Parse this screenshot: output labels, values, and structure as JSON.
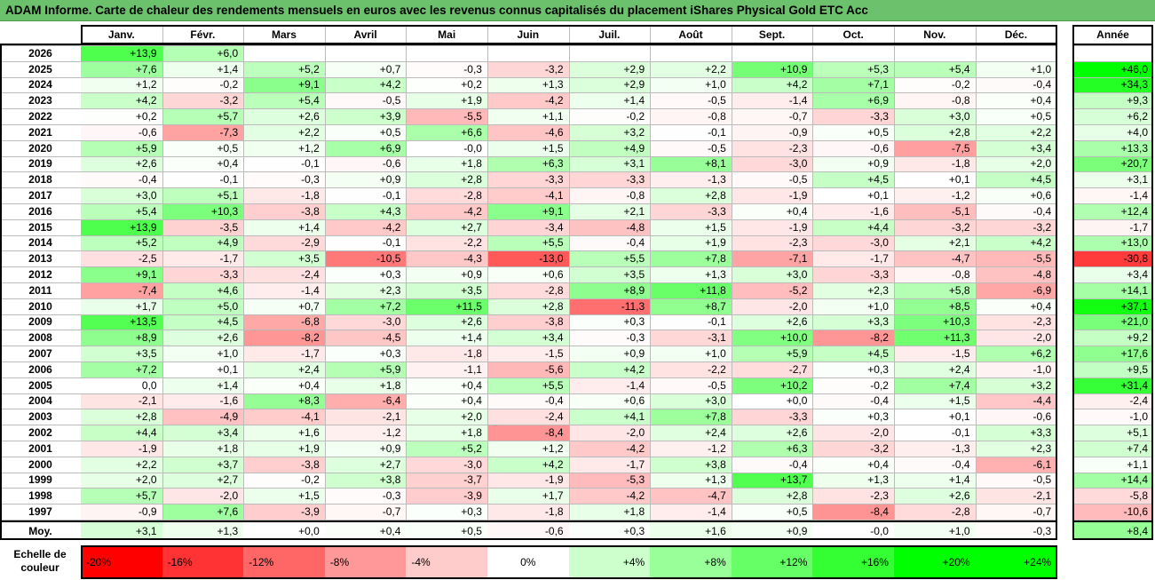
{
  "title": "ADAM Informe. Carte de chaleur des rendements mensuels en euros avec les revenus connus capitalisés du placement iShares Physical Gold ETC Acc",
  "year_header": "Année",
  "avg_label": "Moy.",
  "scale_label": "Echelle de couleur",
  "chart_data": {
    "type": "heatmap",
    "title": "ADAM Informe. Carte de chaleur des rendements mensuels en euros avec les revenus connus capitalisés du placement iShares Physical Gold ETC Acc",
    "months": [
      "Janv.",
      "Févr.",
      "Mars",
      "Avril",
      "Mai",
      "Juin",
      "Juil.",
      "Août",
      "Sept.",
      "Oct.",
      "Nov.",
      "Déc."
    ],
    "rows": [
      {
        "year": "2026",
        "values": [
          "+13,9",
          "+6,0",
          "",
          "",
          "",
          "",
          "",
          "",
          "",
          "",
          "",
          ""
        ],
        "annual": ""
      },
      {
        "year": "2025",
        "values": [
          "+7,6",
          "+1,4",
          "+5,2",
          "+0,7",
          "-0,3",
          "-3,2",
          "+2,9",
          "+2,2",
          "+10,9",
          "+5,3",
          "+5,4",
          "+1,0"
        ],
        "annual": "+46,0"
      },
      {
        "year": "2024",
        "values": [
          "+1,2",
          "-0,2",
          "+9,1",
          "+4,2",
          "+0,2",
          "+1,3",
          "+2,9",
          "+1,0",
          "+4,2",
          "+7,1",
          "-0,2",
          "-0,4"
        ],
        "annual": "+34,3"
      },
      {
        "year": "2023",
        "values": [
          "+4,2",
          "-3,2",
          "+5,4",
          "-0,5",
          "+1,9",
          "-4,2",
          "+1,4",
          "-0,5",
          "-1,4",
          "+6,9",
          "-0,8",
          "+0,4"
        ],
        "annual": "+9,3"
      },
      {
        "year": "2022",
        "values": [
          "+0,2",
          "+5,7",
          "+2,6",
          "+3,9",
          "-5,5",
          "+1,1",
          "-0,2",
          "-0,8",
          "-0,7",
          "-3,3",
          "+3,0",
          "+0,5"
        ],
        "annual": "+6,2"
      },
      {
        "year": "2021",
        "values": [
          "-0,6",
          "-7,3",
          "+2,2",
          "+0,5",
          "+6,6",
          "-4,6",
          "+3,2",
          "-0,1",
          "-0,9",
          "+0,5",
          "+2,8",
          "+2,2"
        ],
        "annual": "+4,0"
      },
      {
        "year": "2020",
        "values": [
          "+5,9",
          "+0,5",
          "+1,2",
          "+6,9",
          "-0,0",
          "+1,5",
          "+4,9",
          "-0,5",
          "-2,3",
          "-0,6",
          "-7,5",
          "+3,4"
        ],
        "annual": "+13,3"
      },
      {
        "year": "2019",
        "values": [
          "+2,6",
          "+0,4",
          "-0,1",
          "-0,6",
          "+1,8",
          "+6,3",
          "+3,1",
          "+8,1",
          "-3,0",
          "+0,9",
          "-1,8",
          "+2,0"
        ],
        "annual": "+20,7"
      },
      {
        "year": "2018",
        "values": [
          "-0,4",
          "-0,1",
          "-0,3",
          "+0,9",
          "+2,8",
          "-3,3",
          "-3,3",
          "-1,3",
          "-0,5",
          "+4,5",
          "+0,1",
          "+4,5"
        ],
        "annual": "+3,1"
      },
      {
        "year": "2017",
        "values": [
          "+3,0",
          "+5,1",
          "-1,8",
          "-0,1",
          "-2,8",
          "-4,1",
          "-0,8",
          "+2,8",
          "-1,9",
          "+0,1",
          "-1,2",
          "+0,6"
        ],
        "annual": "-1,4"
      },
      {
        "year": "2016",
        "values": [
          "+5,4",
          "+10,3",
          "-3,8",
          "+4,3",
          "-4,2",
          "+9,1",
          "+2,1",
          "-3,3",
          "+0,4",
          "-1,6",
          "-5,1",
          "-0,4"
        ],
        "annual": "+12,4"
      },
      {
        "year": "2015",
        "values": [
          "+13,9",
          "-3,5",
          "+1,4",
          "-4,2",
          "+2,7",
          "-3,4",
          "-4,8",
          "+1,5",
          "-1,9",
          "+4,4",
          "-3,2",
          "-3,2"
        ],
        "annual": "-1,7"
      },
      {
        "year": "2014",
        "values": [
          "+5,2",
          "+4,9",
          "-2,9",
          "-0,1",
          "-2,2",
          "+5,5",
          "-0,4",
          "+1,9",
          "-2,3",
          "-3,0",
          "+2,1",
          "+4,2"
        ],
        "annual": "+13,0"
      },
      {
        "year": "2013",
        "values": [
          "-2,5",
          "-1,7",
          "+3,5",
          "-10,5",
          "-4,3",
          "-13,0",
          "+5,5",
          "+7,8",
          "-7,1",
          "-1,7",
          "-4,7",
          "-5,5"
        ],
        "annual": "-30,8"
      },
      {
        "year": "2012",
        "values": [
          "+9,1",
          "-3,3",
          "-2,4",
          "+0,3",
          "+0,9",
          "+0,6",
          "+3,5",
          "+1,3",
          "+3,0",
          "-3,3",
          "-0,8",
          "-4,8"
        ],
        "annual": "+3,4"
      },
      {
        "year": "2011",
        "values": [
          "-7,4",
          "+4,6",
          "-1,4",
          "+2,3",
          "+3,5",
          "-2,8",
          "+8,9",
          "+11,8",
          "-5,2",
          "+2,3",
          "+5,8",
          "-6,9"
        ],
        "annual": "+14,1"
      },
      {
        "year": "2010",
        "values": [
          "+1,7",
          "+5,0",
          "+0,7",
          "+7,2",
          "+11,5",
          "+2,8",
          "-11,3",
          "+8,7",
          "-2,0",
          "+1,0",
          "+8,5",
          "+0,4"
        ],
        "annual": "+37,1"
      },
      {
        "year": "2009",
        "values": [
          "+13,5",
          "+4,5",
          "-6,8",
          "-3,0",
          "+2,6",
          "-3,8",
          "+0,3",
          "-0,1",
          "+2,6",
          "+3,3",
          "+10,3",
          "-2,3"
        ],
        "annual": "+21,0"
      },
      {
        "year": "2008",
        "values": [
          "+8,9",
          "+2,6",
          "-8,2",
          "-4,5",
          "+1,4",
          "+3,4",
          "-0,3",
          "-3,1",
          "+10,0",
          "-8,2",
          "+11,3",
          "-2,0"
        ],
        "annual": "+9,2"
      },
      {
        "year": "2007",
        "values": [
          "+3,5",
          "+1,0",
          "-1,7",
          "+0,3",
          "-1,8",
          "-1,5",
          "+0,9",
          "+1,0",
          "+5,9",
          "+4,5",
          "-1,5",
          "+6,2"
        ],
        "annual": "+17,6"
      },
      {
        "year": "2006",
        "values": [
          "+7,2",
          "+0,1",
          "+2,4",
          "+5,9",
          "-1,1",
          "-5,6",
          "+4,2",
          "-2,2",
          "-2,7",
          "+0,3",
          "+2,4",
          "-1,0"
        ],
        "annual": "+9,5"
      },
      {
        "year": "2005",
        "values": [
          "0,0",
          "+1,4",
          "+0,4",
          "+1,8",
          "+0,4",
          "+5,5",
          "-1,4",
          "-0,5",
          "+10,2",
          "-0,2",
          "+7,4",
          "+3,2"
        ],
        "annual": "+31,4"
      },
      {
        "year": "2004",
        "values": [
          "-2,1",
          "-1,6",
          "+8,3",
          "-6,4",
          "+0,4",
          "-0,4",
          "+0,6",
          "+3,0",
          "+0,0",
          "-0,4",
          "+1,5",
          "-4,4"
        ],
        "annual": "-2,4"
      },
      {
        "year": "2003",
        "values": [
          "+2,8",
          "-4,9",
          "-4,1",
          "-2,1",
          "+2,0",
          "-2,4",
          "+4,1",
          "+7,8",
          "-3,3",
          "+0,3",
          "+0,1",
          "-0,6"
        ],
        "annual": "-1,0"
      },
      {
        "year": "2002",
        "values": [
          "+4,4",
          "+3,4",
          "+1,6",
          "-1,2",
          "+1,8",
          "-8,4",
          "-2,0",
          "+2,4",
          "+2,6",
          "-2,0",
          "-0,1",
          "+3,3"
        ],
        "annual": "+5,1"
      },
      {
        "year": "2001",
        "values": [
          "-1,9",
          "+1,8",
          "+1,9",
          "+0,9",
          "+5,2",
          "+1,2",
          "-4,2",
          "-1,2",
          "+6,3",
          "-3,2",
          "-1,3",
          "+2,3"
        ],
        "annual": "+7,4"
      },
      {
        "year": "2000",
        "values": [
          "+2,2",
          "+3,7",
          "-3,8",
          "+2,7",
          "-3,0",
          "+4,2",
          "-1,7",
          "+3,8",
          "-0,4",
          "+0,4",
          "-0,4",
          "-6,1"
        ],
        "annual": "+1,1"
      },
      {
        "year": "1999",
        "values": [
          "+2,0",
          "+2,7",
          "-0,2",
          "+3,8",
          "-3,7",
          "-1,9",
          "-5,3",
          "+1,3",
          "+13,7",
          "+1,3",
          "+1,4",
          "-0,5"
        ],
        "annual": "+14,4"
      },
      {
        "year": "1998",
        "values": [
          "+5,7",
          "-2,0",
          "+1,5",
          "-0,3",
          "-3,9",
          "+1,7",
          "-4,2",
          "-4,7",
          "+2,8",
          "-2,3",
          "+2,6",
          "-2,1"
        ],
        "annual": "-5,8"
      },
      {
        "year": "1997",
        "values": [
          "-0,9",
          "+7,6",
          "-3,9",
          "-0,7",
          "+0,3",
          "-1,8",
          "+1,8",
          "-1,4",
          "+0,5",
          "-8,4",
          "-2,8",
          "-0,7"
        ],
        "annual": "-10,6"
      }
    ],
    "averages": [
      "+3,1",
      "+1,3",
      "+0,0",
      "+0,4",
      "+0,5",
      "-0,6",
      "+0,3",
      "+1,6",
      "+0,9",
      "-0,0",
      "+1,0",
      "-0,3"
    ],
    "average_annual": "+8,4",
    "color_scale": [
      {
        "label": "-20%",
        "value": -20
      },
      {
        "label": "-16%",
        "value": -16
      },
      {
        "label": "-12%",
        "value": -12
      },
      {
        "label": "-8%",
        "value": -8
      },
      {
        "label": "-4%",
        "value": -4
      },
      {
        "label": "0%",
        "value": 0
      },
      {
        "label": "+4%",
        "value": 4
      },
      {
        "label": "+8%",
        "value": 8
      },
      {
        "label": "+12%",
        "value": 12
      },
      {
        "label": "+16%",
        "value": 16
      },
      {
        "label": "+20%",
        "value": 20
      },
      {
        "label": "+24%",
        "value": 24
      }
    ],
    "colors": {
      "negative": "#ff0000",
      "neutral": "#ffffff",
      "positive": "#00ff00",
      "title_bar": "#6cc26c"
    }
  }
}
